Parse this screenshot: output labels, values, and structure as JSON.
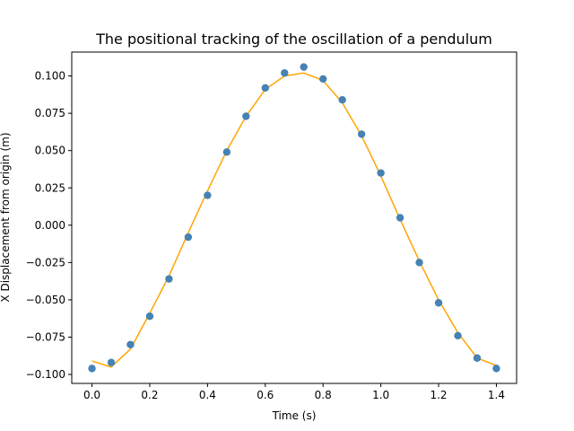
{
  "chart_data": {
    "type": "scatter",
    "title": "The positional tracking of the oscillation of a pendulum",
    "xlabel": "Time (s)",
    "ylabel": "X Displacement from origin (m)",
    "xlim": [
      -0.07,
      1.47
    ],
    "ylim": [
      -0.106,
      0.116
    ],
    "x_ticks": [
      0.0,
      0.2,
      0.4,
      0.6,
      0.8,
      1.0,
      1.2,
      1.4
    ],
    "x_tick_labels": [
      "0.0",
      "0.2",
      "0.4",
      "0.6",
      "0.8",
      "1.0",
      "1.2",
      "1.4"
    ],
    "y_ticks": [
      -0.1,
      -0.075,
      -0.05,
      -0.025,
      0.0,
      0.025,
      0.05,
      0.075,
      0.1
    ],
    "y_tick_labels": [
      "−0.100",
      "−0.075",
      "−0.050",
      "−0.025",
      "0.000",
      "0.025",
      "0.050",
      "0.075",
      "0.100"
    ],
    "grid": false,
    "series": [
      {
        "kind": "points",
        "color": "#4682b4",
        "x": [
          0.0,
          0.0667,
          0.1333,
          0.2,
          0.2667,
          0.3333,
          0.4,
          0.4667,
          0.5333,
          0.6,
          0.6667,
          0.7333,
          0.8,
          0.8667,
          0.9333,
          1.0,
          1.0667,
          1.1333,
          1.2,
          1.2667,
          1.3333,
          1.4
        ],
        "y": [
          -0.096,
          -0.092,
          -0.08,
          -0.061,
          -0.036,
          -0.008,
          0.02,
          0.049,
          0.073,
          0.092,
          0.102,
          0.106,
          0.098,
          0.084,
          0.061,
          0.035,
          0.005,
          -0.025,
          -0.052,
          -0.074,
          -0.089,
          -0.096
        ]
      },
      {
        "kind": "line",
        "color": "#ffa500",
        "x": [
          0.0,
          0.0667,
          0.1333,
          0.2,
          0.2667,
          0.3333,
          0.4,
          0.4667,
          0.5333,
          0.6,
          0.6667,
          0.7333,
          0.8,
          0.8667,
          0.9333,
          1.0,
          1.0667,
          1.1333,
          1.2,
          1.2667,
          1.3333,
          1.4
        ],
        "y": [
          -0.091,
          -0.095,
          -0.083,
          -0.059,
          -0.034,
          -0.005,
          0.023,
          0.05,
          0.073,
          0.091,
          0.1,
          0.102,
          0.097,
          0.082,
          0.06,
          0.033,
          0.004,
          -0.024,
          -0.05,
          -0.072,
          -0.089,
          -0.094
        ]
      }
    ]
  }
}
